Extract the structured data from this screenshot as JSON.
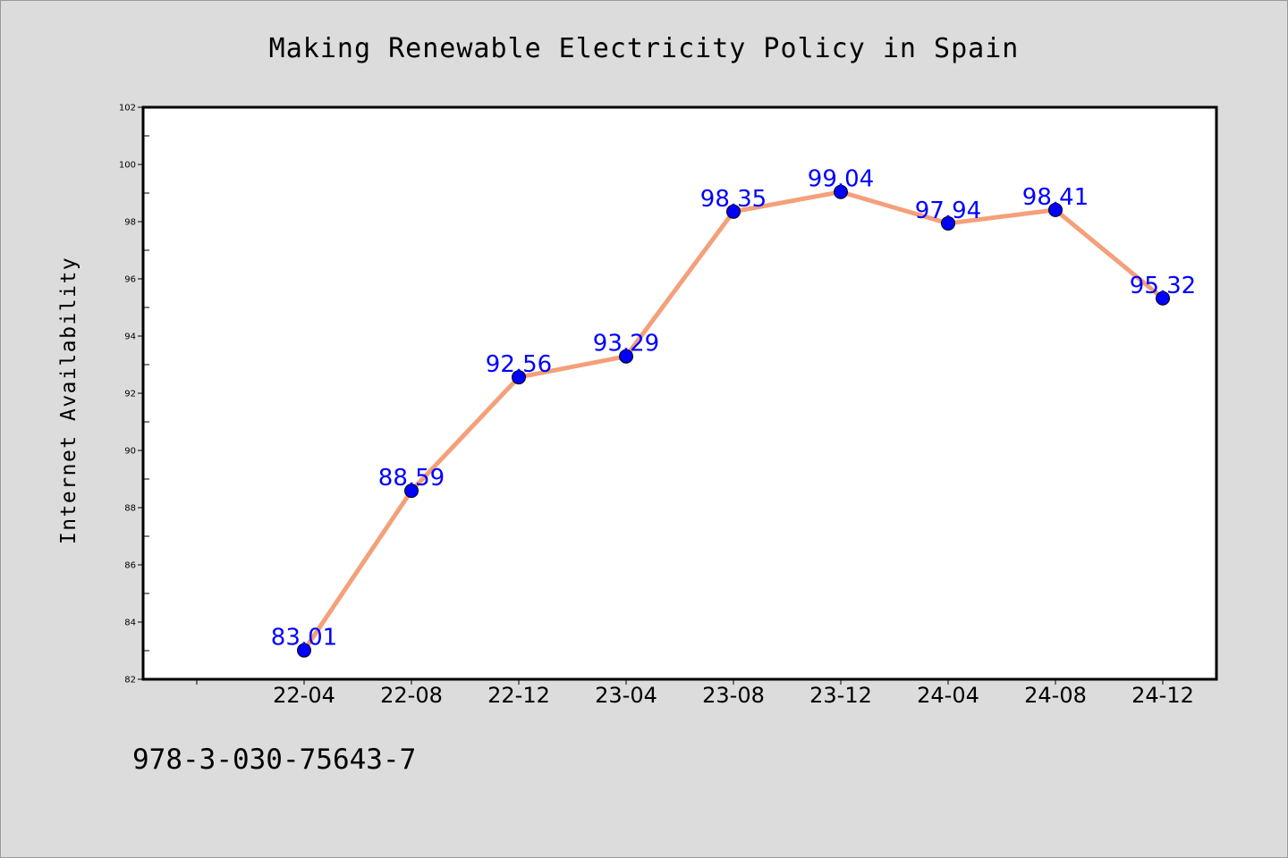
{
  "colors": {
    "background": "#dcdcdc",
    "plot_background": "#ffffff",
    "line": "#f4a07a",
    "marker": "#0000ff",
    "data_label": "#0000ff"
  },
  "footer": {
    "isbn": "978-3-030-75643-7"
  },
  "chart_data": {
    "type": "line",
    "title": "Making Renewable Electricity Policy in Spain",
    "xlabel": "",
    "ylabel": "Internet Availability",
    "categories": [
      "22-04",
      "22-08",
      "22-12",
      "23-04",
      "23-08",
      "23-12",
      "24-04",
      "24-08",
      "24-12"
    ],
    "values": [
      83.01,
      88.59,
      92.56,
      93.29,
      98.35,
      99.04,
      97.94,
      98.41,
      95.32
    ],
    "value_labels": [
      "83.01",
      "88.59",
      "92.56",
      "93.29",
      "98.35",
      "99.04",
      "97.94",
      "98.41",
      "95.32"
    ],
    "ylim": [
      82,
      102
    ],
    "yticks": [
      82,
      84,
      86,
      88,
      90,
      92,
      94,
      96,
      98,
      100,
      102
    ],
    "ytick_labels": [
      "82",
      "84",
      "86",
      "88",
      "90",
      "92",
      "94",
      "96",
      "98",
      "100",
      "102"
    ],
    "grid": false,
    "legend": "none"
  }
}
